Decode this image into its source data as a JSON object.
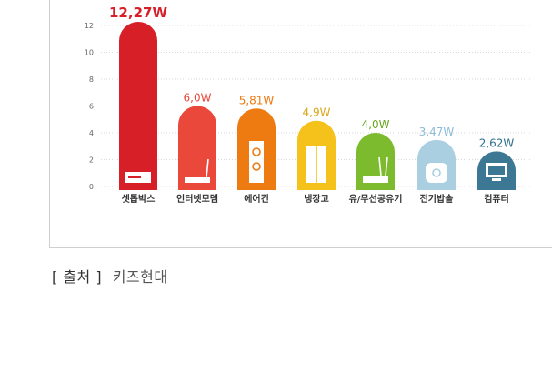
{
  "source": {
    "label": "[ 출처 ]",
    "name": "키즈현대"
  },
  "chart_data": {
    "type": "bar",
    "categories": [
      "셋톱박스",
      "인터넷모뎀",
      "에어컨",
      "냉장고",
      "유/무선공유기",
      "전기밥솥",
      "컴퓨터"
    ],
    "values": [
      12.27,
      6.0,
      5.81,
      4.9,
      4.0,
      3.47,
      2.62
    ],
    "data_labels": [
      "12,27W",
      "6,0W",
      "5,81W",
      "4,9W",
      "4,0W",
      "3,47W",
      "2,62W"
    ],
    "bar_colors": [
      "#d71f27",
      "#e9483b",
      "#ee7a12",
      "#f5c21b",
      "#7dbb2e",
      "#a9cfe0",
      "#3c7894"
    ],
    "label_colors": [
      "#d71f27",
      "#e9483b",
      "#ee7a12",
      "#d9a71a",
      "#6aa624",
      "#8cbdd4",
      "#2f6f8c"
    ],
    "icons": [
      "settop-box-icon",
      "modem-icon",
      "aircon-icon",
      "refrigerator-icon",
      "router-icon",
      "rice-cooker-icon",
      "monitor-icon"
    ],
    "y_ticks": [
      0,
      2,
      4,
      6,
      8,
      10,
      12
    ],
    "ylim": [
      0,
      14
    ],
    "grid": true,
    "title": "",
    "xlabel": "",
    "ylabel": ""
  }
}
